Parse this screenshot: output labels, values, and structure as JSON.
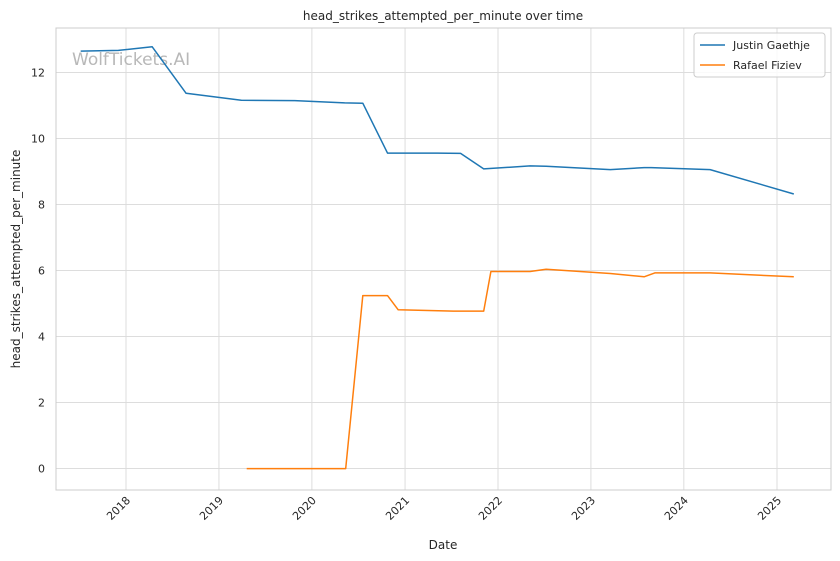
{
  "chart_data": {
    "type": "line",
    "title": "head_strikes_attempted_per_minute over time",
    "xlabel": "Date",
    "ylabel": "head_strikes_attempted_per_minute",
    "watermark": "WolfTickets.AI",
    "x_ticks": [
      "2018",
      "2019",
      "2020",
      "2021",
      "2022",
      "2023",
      "2024",
      "2025"
    ],
    "y_ticks": [
      "0",
      "2",
      "4",
      "6",
      "8",
      "10",
      "12"
    ],
    "xlim": [
      "2017-04-01",
      "2025-08-01"
    ],
    "ylim": [
      -0.65,
      13.35
    ],
    "grid": true,
    "legend_position": "top-right",
    "colors": {
      "Justin Gaethje": "#1f77b4",
      "Rafael Fiziev": "#ff7f0e"
    },
    "series": [
      {
        "name": "Justin Gaethje",
        "x": [
          "2017-07-07",
          "2017-12-02",
          "2018-04-14",
          "2018-08-25",
          "2019-03-30",
          "2019-10-26",
          "2020-05-09",
          "2020-07-19",
          "2020-10-24",
          "2021-05-08",
          "2021-08-07",
          "2021-11-06",
          "2022-05-07",
          "2022-07-09",
          "2023-03-18",
          "2023-07-29",
          "2023-08-26",
          "2024-04-13",
          "2025-03-08"
        ],
        "values": [
          12.65,
          12.67,
          12.78,
          11.37,
          11.16,
          11.15,
          11.08,
          11.07,
          9.56,
          9.56,
          9.55,
          9.08,
          9.17,
          9.16,
          9.06,
          9.12,
          9.12,
          9.06,
          8.32
        ]
      },
      {
        "name": "Rafael Fiziev",
        "x": [
          "2019-04-20",
          "2019-07-13",
          "2019-10-12",
          "2020-05-13",
          "2020-07-19",
          "2020-10-24",
          "2020-12-05",
          "2021-07-10",
          "2021-11-06",
          "2021-12-04",
          "2022-05-07",
          "2022-07-09",
          "2023-03-18",
          "2023-07-29",
          "2023-09-09",
          "2024-04-13",
          "2025-03-08"
        ],
        "values": [
          0,
          0,
          0,
          0,
          5.24,
          5.24,
          4.81,
          4.77,
          4.77,
          5.97,
          5.97,
          6.04,
          5.91,
          5.81,
          5.93,
          5.93,
          5.81
        ]
      }
    ]
  }
}
